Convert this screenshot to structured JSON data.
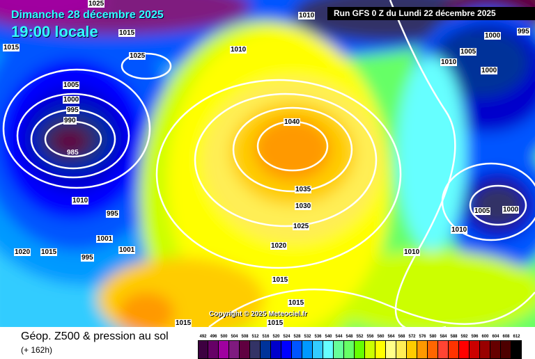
{
  "header": {
    "date": "Dimanche 28 décembre 2025",
    "time": "19:00 locale",
    "run": "Run GFS 0 Z du Lundi 22 décembre 2025"
  },
  "copyright": "Copyright © 2025 Meteociel.fr",
  "footer": {
    "title": "Géop. Z500 & pression au sol",
    "subtitle": "(+ 162h)"
  },
  "legend": [
    {
      "value": "492",
      "color": "#3d0040"
    },
    {
      "value": "496",
      "color": "#660066"
    },
    {
      "value": "500",
      "color": "#a000a0"
    },
    {
      "value": "504",
      "color": "#7f1a7f"
    },
    {
      "value": "508",
      "color": "#600040"
    },
    {
      "value": "512",
      "color": "#333366"
    },
    {
      "value": "516",
      "color": "#003399"
    },
    {
      "value": "520",
      "color": "#0000cc"
    },
    {
      "value": "524",
      "color": "#0000ff"
    },
    {
      "value": "528",
      "color": "#0055ff"
    },
    {
      "value": "532",
      "color": "#0099ff"
    },
    {
      "value": "536",
      "color": "#33ccff"
    },
    {
      "value": "540",
      "color": "#66ffff"
    },
    {
      "value": "544",
      "color": "#66ff99"
    },
    {
      "value": "548",
      "color": "#66ff66"
    },
    {
      "value": "552",
      "color": "#66ff00"
    },
    {
      "value": "556",
      "color": "#ccff00"
    },
    {
      "value": "560",
      "color": "#ffff00"
    },
    {
      "value": "564",
      "color": "#ffff88"
    },
    {
      "value": "568",
      "color": "#ffee55"
    },
    {
      "value": "572",
      "color": "#ffcc00"
    },
    {
      "value": "576",
      "color": "#ff9900"
    },
    {
      "value": "580",
      "color": "#ff6600"
    },
    {
      "value": "584",
      "color": "#ff4433"
    },
    {
      "value": "588",
      "color": "#ff3300"
    },
    {
      "value": "592",
      "color": "#ff0000"
    },
    {
      "value": "596",
      "color": "#cc0000"
    },
    {
      "value": "600",
      "color": "#990000"
    },
    {
      "value": "604",
      "color": "#660000"
    },
    {
      "value": "608",
      "color": "#4d0000"
    },
    {
      "value": "612",
      "color": "#000000"
    }
  ],
  "isobar_labels": [
    "1010",
    "1025",
    "1015",
    "1015",
    "1010",
    "1025",
    "1005",
    "1000",
    "995",
    "990",
    "985",
    "1010",
    "995",
    "1020",
    "1015",
    "1001",
    "1001",
    "995",
    "1040",
    "1035",
    "1030",
    "1025",
    "1020",
    "1015",
    "1015",
    "1015",
    "1010",
    "1005",
    "1000",
    "1010",
    "1000",
    "995",
    "1005",
    "1010",
    "1000",
    "1015"
  ]
}
